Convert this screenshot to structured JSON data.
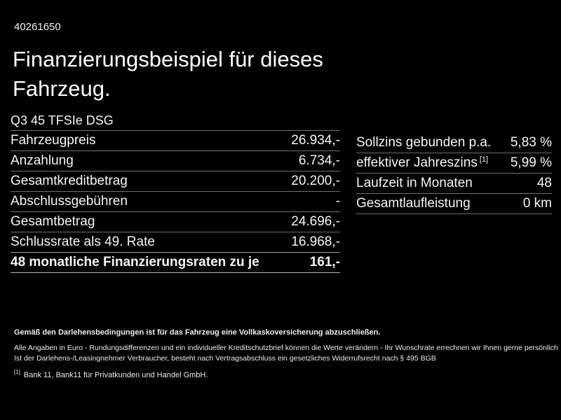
{
  "page": {
    "vehicle_id": "40261650",
    "title": "Finanzierungsbeispiel für dieses Fahrzeug.",
    "model": "Q3 45 TFSIe DSG"
  },
  "colors": {
    "background": "#000000",
    "text": "#ffffff",
    "divider": "#6f6f6f"
  },
  "left_table": {
    "rows": [
      {
        "label": "Fahrzeugpreis",
        "value": "26.934,-"
      },
      {
        "label": "Anzahlung",
        "value": "6.734,-"
      },
      {
        "label": "Gesamtkreditbetrag",
        "value": "20.200,-"
      },
      {
        "label": "Abschlussgebühren",
        "value": "-"
      },
      {
        "label": "Gesamtbetrag",
        "value": "24.696,-"
      },
      {
        "label": "Schlussrate als 49. Rate",
        "value": "16.968,-"
      },
      {
        "label": "48 monatliche Finanzierungsraten zu je",
        "value": "161,-"
      }
    ]
  },
  "right_table": {
    "rows": [
      {
        "label": "Sollzins gebunden p.a.",
        "value": "5,83 %"
      },
      {
        "label": "effektiver Jahreszins",
        "sup": "[1]",
        "value": "5,99 %"
      },
      {
        "label": "Laufzeit in Monaten",
        "value": "48"
      },
      {
        "label": "Gesamtlaufleistung",
        "value": "0 km"
      }
    ]
  },
  "footer": {
    "line1": "Gemäß den Darlehensbedingungen ist für das Fahrzeug eine Vollkaskoversicherung abzuschließen.",
    "line2": "Alle Angaben in Euro - Rundungsdifferenzen und ein individueller Kreditschutzbrief können die Werte verändern - Ihr Wunschrate errechnen wir Ihnen gerne persönlich",
    "line3": "Ist der Darlehens-/Leasingnehmer Verbraucher, besteht nach Vertragsabschluss ein gesetzliches Widerrufsrecht nach § 495 BGB",
    "footnote_sup": "[1]",
    "footnote_text": "Bank 11, Bank11 für Privatkunden und Handel GmbH."
  }
}
